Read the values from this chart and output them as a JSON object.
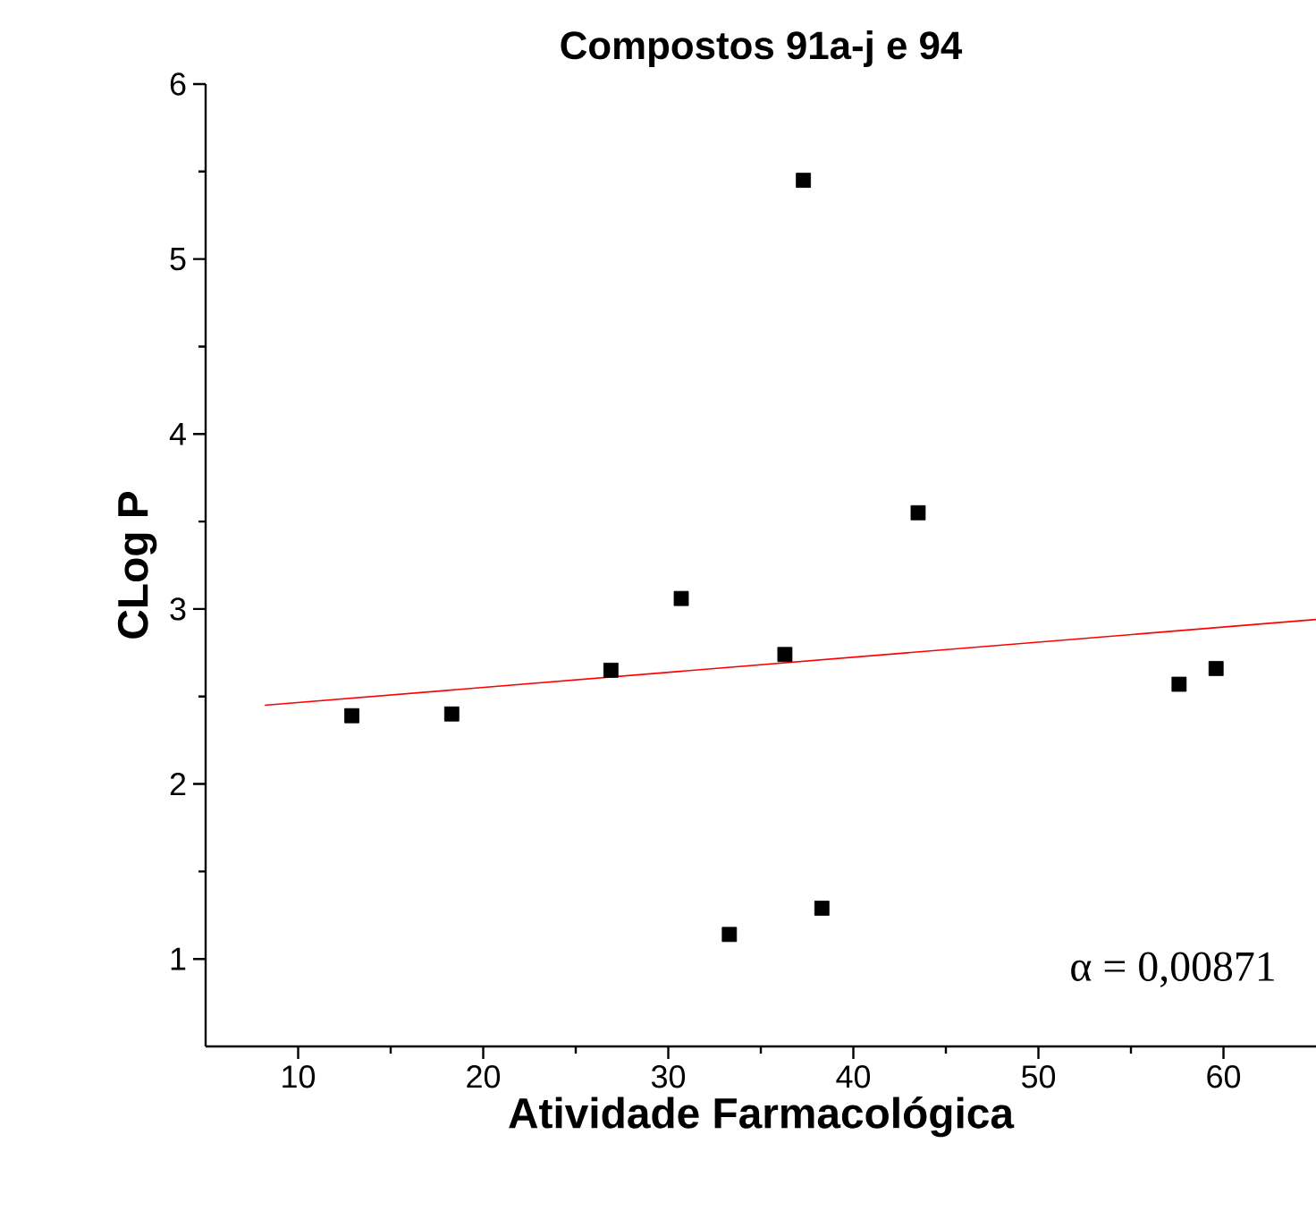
{
  "chart_data": {
    "type": "scatter",
    "title": "Compostos 91a-j e 94",
    "xlabel": "Atividade Farmacológica",
    "ylabel": "CLog P",
    "annotations": [
      "α = 0,00871"
    ],
    "xlim": [
      5,
      65
    ],
    "ylim": [
      0.5,
      6
    ],
    "xticks": [
      10,
      20,
      30,
      40,
      50,
      60
    ],
    "yticks": [
      1,
      2,
      3,
      4,
      5,
      6
    ],
    "series": [
      {
        "marker": "square",
        "color": "#000000",
        "x": [
          12.9,
          18.3,
          26.9,
          30.7,
          33.3,
          36.3,
          37.3,
          38.3,
          43.5,
          57.6,
          59.6
        ],
        "values": [
          2.39,
          2.4,
          2.65,
          3.06,
          1.14,
          2.74,
          5.45,
          1.29,
          3.55,
          2.57,
          2.66
        ]
      },
      {
        "type": "line",
        "color": "#ff0000",
        "x": [
          8.2,
          65
        ],
        "values": [
          2.45,
          2.94
        ]
      }
    ]
  }
}
